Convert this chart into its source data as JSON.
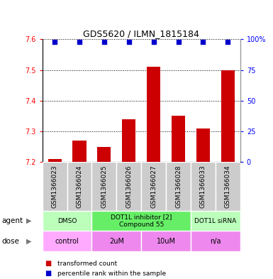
{
  "title": "GDS5620 / ILMN_1815184",
  "samples": [
    "GSM1366023",
    "GSM1366024",
    "GSM1366025",
    "GSM1366026",
    "GSM1366027",
    "GSM1366028",
    "GSM1366033",
    "GSM1366034"
  ],
  "bar_values": [
    7.21,
    7.27,
    7.25,
    7.34,
    7.51,
    7.35,
    7.31,
    7.5
  ],
  "percentile_values": [
    98,
    98,
    98,
    98,
    98,
    98,
    98,
    98
  ],
  "ylim": [
    7.2,
    7.6
  ],
  "yticks": [
    7.2,
    7.3,
    7.4,
    7.5,
    7.6
  ],
  "right_yticks": [
    0,
    25,
    50,
    75,
    100
  ],
  "right_ylim": [
    0,
    100
  ],
  "bar_color": "#cc0000",
  "dot_color": "#0000cc",
  "dot_size": 18,
  "agent_groups": [
    {
      "label": "DMSO",
      "start": 0,
      "end": 2,
      "color": "#bbffbb"
    },
    {
      "label": "DOT1L inhibitor [2]\nCompound 55",
      "start": 2,
      "end": 6,
      "color": "#66ee66"
    },
    {
      "label": "DOT1L siRNA",
      "start": 6,
      "end": 8,
      "color": "#bbffbb"
    }
  ],
  "dose_groups": [
    {
      "label": "control",
      "start": 0,
      "end": 2,
      "color": "#ffaaff"
    },
    {
      "label": "2uM",
      "start": 2,
      "end": 4,
      "color": "#ee88ee"
    },
    {
      "label": "10uM",
      "start": 4,
      "end": 6,
      "color": "#ee88ee"
    },
    {
      "label": "n/a",
      "start": 6,
      "end": 8,
      "color": "#ee88ee"
    }
  ],
  "bar_width": 0.55,
  "sample_box_color": "#cccccc",
  "border_color": "#999999",
  "title_fontsize": 9,
  "tick_fontsize": 7,
  "label_fontsize": 6.5,
  "agent_label": "agent",
  "dose_label": "dose"
}
